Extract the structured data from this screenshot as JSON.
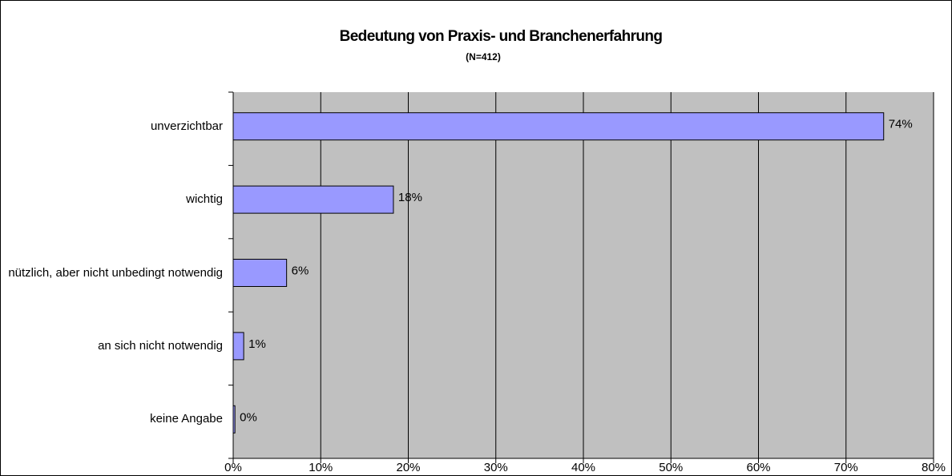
{
  "chart_data": {
    "type": "bar",
    "orientation": "horizontal",
    "title": "Bedeutung von Praxis- und Branchenerfahrung",
    "subtitle": "(N=412)",
    "categories": [
      "unverzichtbar",
      "wichtig",
      "nützlich, aber nicht unbedingt notwendig",
      "an sich nicht notwendig",
      "keine Angabe"
    ],
    "values": [
      74.3,
      18.3,
      6.1,
      1.2,
      0.2
    ],
    "value_labels": [
      "74%",
      "18%",
      "6%",
      "1%",
      "0%"
    ],
    "color": "#9999ff",
    "xlim": [
      0,
      80
    ],
    "xticks": [
      {
        "value": 0,
        "label": "0%"
      },
      {
        "value": 10,
        "label": "10%"
      },
      {
        "value": 20,
        "label": "20%"
      },
      {
        "value": 30,
        "label": "30%"
      },
      {
        "value": 40,
        "label": "40%"
      },
      {
        "value": 50,
        "label": "50%"
      },
      {
        "value": 60,
        "label": "60%"
      },
      {
        "value": 70,
        "label": "70%"
      },
      {
        "value": 80,
        "label": "80%"
      }
    ],
    "grid": true
  }
}
